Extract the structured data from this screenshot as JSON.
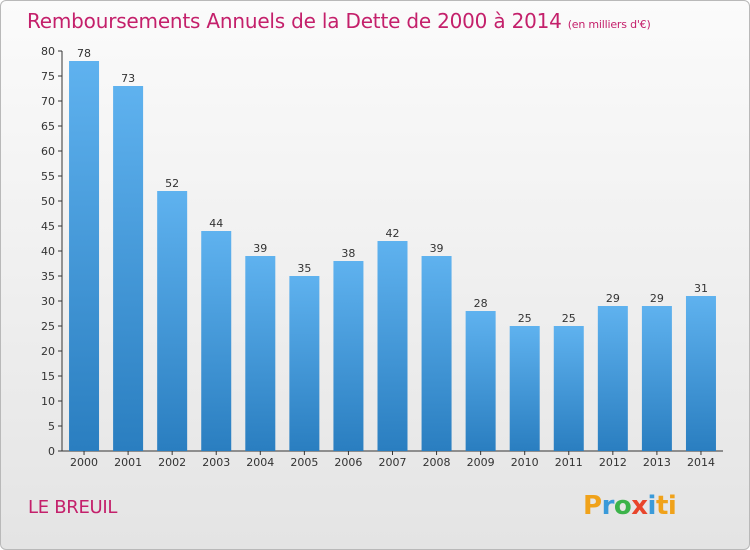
{
  "title": "Remboursements Annuels de la Dette de 2000 à 2014",
  "unit": "(en milliers d'€)",
  "commune": "LE BREUIL",
  "logo": {
    "letters": [
      "P",
      "r",
      "o",
      "x",
      "i",
      "t",
      "i"
    ]
  },
  "colors": {
    "title": "#c4206b",
    "bar_top": "#5fb2ef",
    "bar_bottom": "#2a7ec0",
    "axis": "#333333"
  },
  "chart_data": {
    "type": "bar",
    "categories": [
      "2000",
      "2001",
      "2002",
      "2003",
      "2004",
      "2005",
      "2006",
      "2007",
      "2008",
      "2009",
      "2010",
      "2011",
      "2012",
      "2013",
      "2014"
    ],
    "values": [
      78,
      73,
      52,
      44,
      39,
      35,
      38,
      42,
      39,
      28,
      25,
      25,
      29,
      29,
      31
    ],
    "ylim": [
      0,
      80
    ],
    "yticks": [
      0,
      5,
      10,
      15,
      20,
      25,
      30,
      35,
      40,
      45,
      50,
      55,
      60,
      65,
      70,
      75,
      80
    ],
    "grid": false,
    "data_labels": true
  }
}
